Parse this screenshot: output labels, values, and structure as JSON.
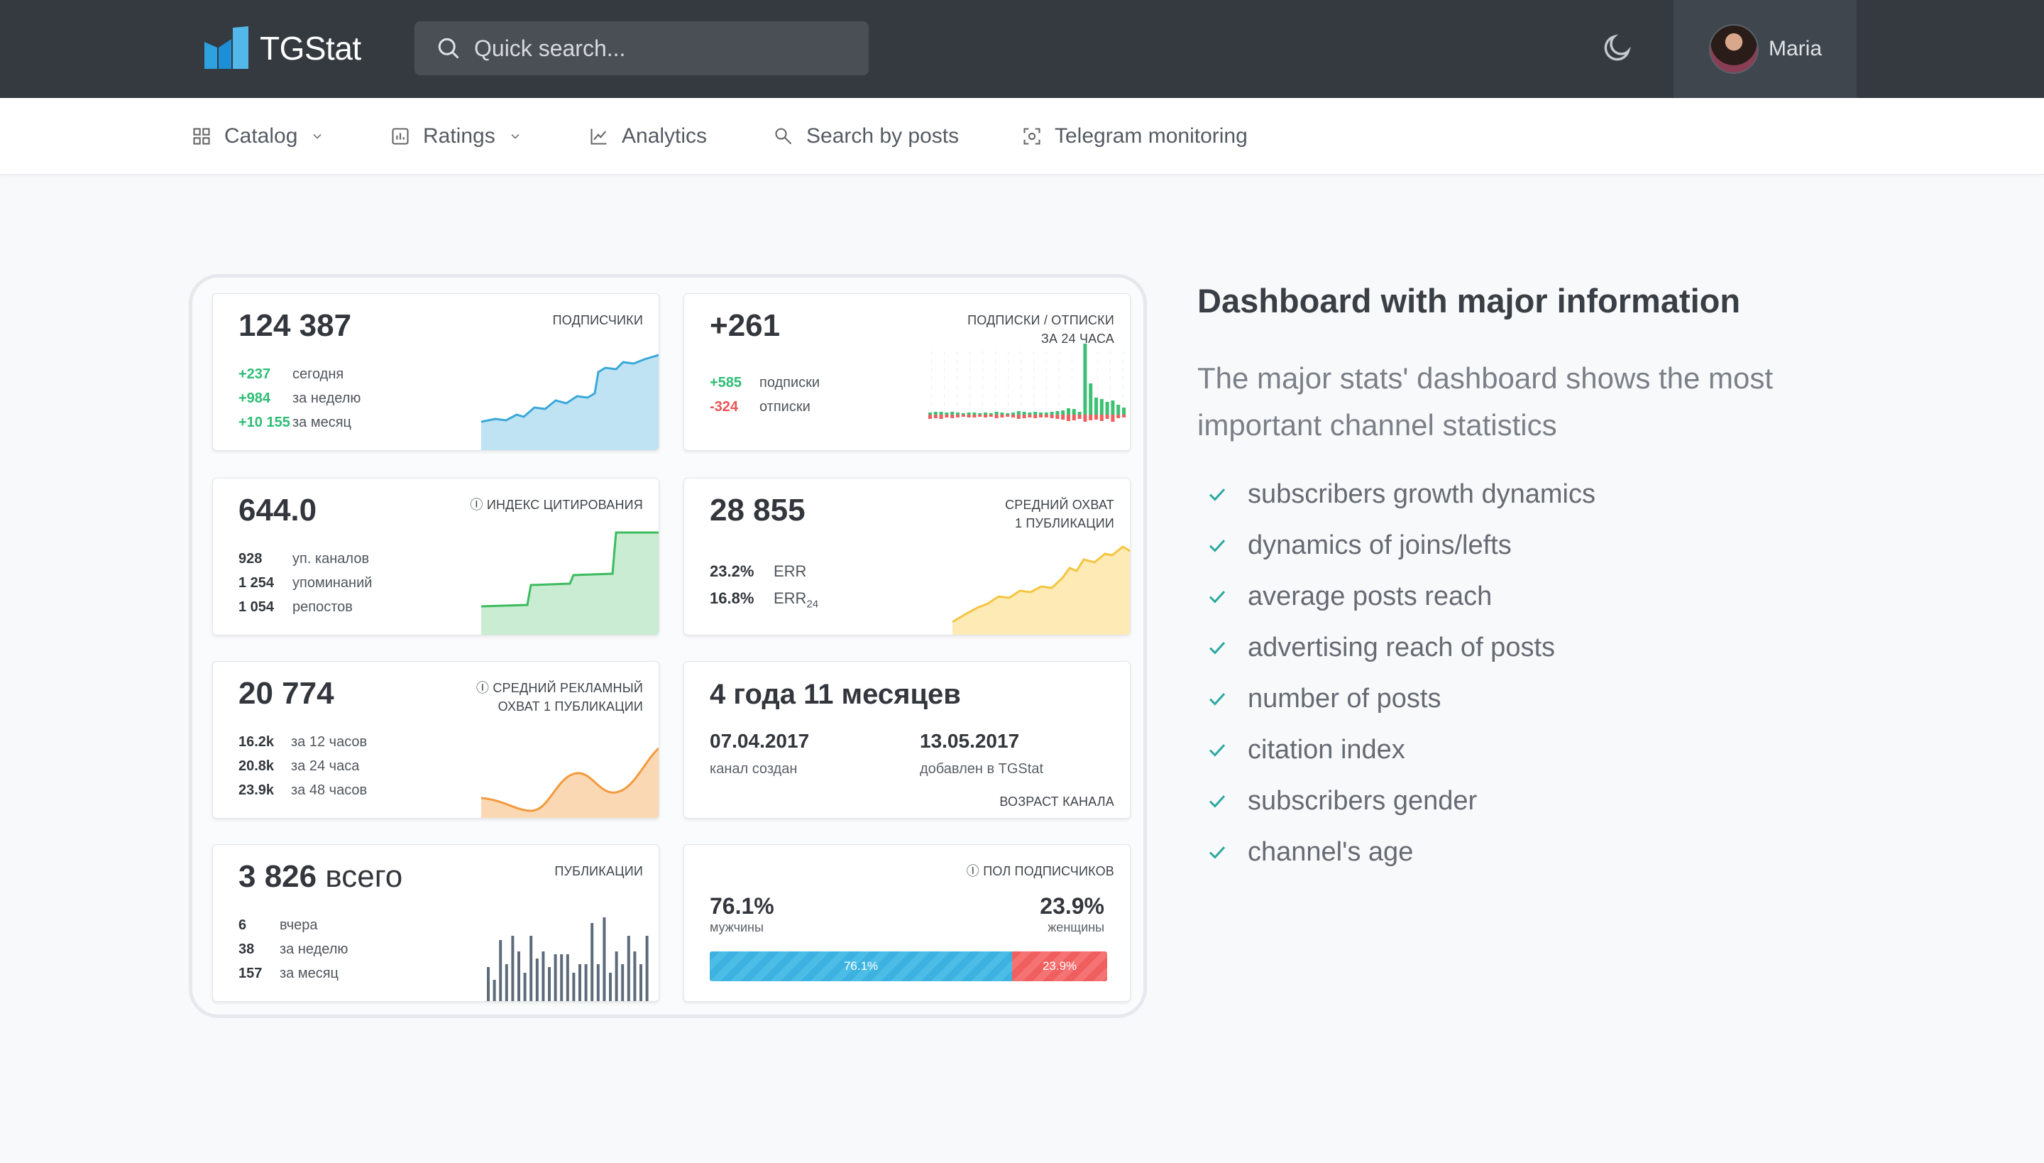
{
  "header": {
    "logo_text": "TGStat",
    "search_placeholder": "Quick search...",
    "theme_icon": "moon-icon",
    "user_name": "Maria"
  },
  "nav": {
    "items": [
      {
        "label": "Catalog",
        "icon": "grid-icon",
        "dropdown": true
      },
      {
        "label": "Ratings",
        "icon": "bar-chart-icon",
        "dropdown": true
      },
      {
        "label": "Analytics",
        "icon": "line-chart-icon",
        "dropdown": false
      },
      {
        "label": "Search by posts",
        "icon": "search-icon",
        "dropdown": false
      },
      {
        "label": "Telegram monitoring",
        "icon": "scan-icon",
        "dropdown": false
      }
    ]
  },
  "dashboard": {
    "subscribers": {
      "value": "124 387",
      "label": "подписчики",
      "rows": [
        {
          "v": "+237",
          "k": "сегодня"
        },
        {
          "v": "+984",
          "k": "за неделю"
        },
        {
          "v": "+10 155",
          "k": "за месяц"
        }
      ],
      "color": "#3aa8d8"
    },
    "joins": {
      "value": "+261",
      "label_1": "подписки / отписки",
      "label_2": "за 24 часа",
      "rows": [
        {
          "v": "+585",
          "k": "подписки"
        },
        {
          "v": "-324",
          "k": "отписки"
        }
      ]
    },
    "citation": {
      "value": "644.0",
      "label": "индекс цитирования",
      "rows": [
        {
          "v": "928",
          "k": "уп. каналов"
        },
        {
          "v": "1 254",
          "k": "упоминаний"
        },
        {
          "v": "1 054",
          "k": "репостов"
        }
      ],
      "color": "#3dbb5f"
    },
    "reach": {
      "value": "28 855",
      "label_1": "средний охват",
      "label_2": "1 публикации",
      "rows": [
        {
          "v": "23.2%",
          "k": "ERR"
        },
        {
          "v": "16.8%",
          "k": "ERR",
          "sub": "24"
        }
      ],
      "color": "#f5c542"
    },
    "ad_reach": {
      "value": "20 774",
      "label_1": "средний рекламный",
      "label_2": "охват 1 публикации",
      "rows": [
        {
          "v": "16.2k",
          "k": "за 12 часов"
        },
        {
          "v": "20.8k",
          "k": "за 24 часа"
        },
        {
          "v": "23.9k",
          "k": "за 48 часов"
        }
      ],
      "color": "#f39a3d"
    },
    "age": {
      "value": "4 года 11 месяцев",
      "created_date": "07.04.2017",
      "created_label": "канал создан",
      "added_date": "13.05.2017",
      "added_label": "добавлен в TGStat",
      "label": "возраст канала"
    },
    "posts": {
      "value": "3 826",
      "value_suffix": "всего",
      "label": "публикации",
      "rows": [
        {
          "v": "6",
          "k": "вчера"
        },
        {
          "v": "38",
          "k": "за неделю"
        },
        {
          "v": "157",
          "k": "за месяц"
        }
      ]
    },
    "gender": {
      "label": "пол подписчиков",
      "male_pct": "76.1%",
      "male_label": "мужчины",
      "female_pct": "23.9%",
      "female_label": "женщины",
      "male_fraction": 0.761,
      "female_fraction": 0.239,
      "male_color": "#3db2e0",
      "female_color": "#ef5f5f"
    }
  },
  "info": {
    "heading": "Dashboard with major information",
    "lead": "The major stats' dashboard shows the most important channel statistics",
    "features": [
      "subscribers growth dynamics",
      "dynamics of joins/lefts",
      "average posts reach",
      "advertising reach of posts",
      "number of posts",
      "citation index",
      "subscribers gender",
      "channel's age"
    ],
    "check_color": "#2aa8a0"
  }
}
